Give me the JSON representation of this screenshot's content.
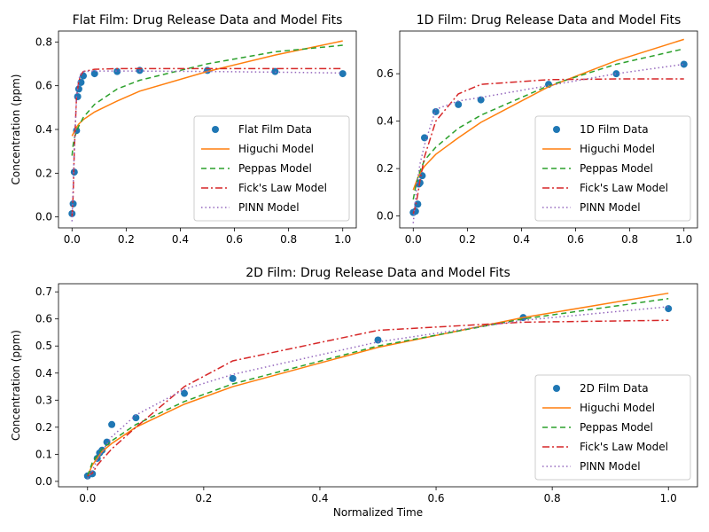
{
  "colors": {
    "data": "#1f77b4",
    "higuchi": "#ff7f0e",
    "peppas": "#2ca02c",
    "fick": "#d62728",
    "pinn": "#9467bd"
  },
  "chart_data": [
    {
      "type": "line",
      "title": "Flat Film: Drug Release Data and Model Fits",
      "xlabel": "",
      "ylabel": "Concentration (ppm)",
      "xlim": [
        -0.05,
        1.05
      ],
      "ylim": [
        -0.05,
        0.85
      ],
      "xticks": [
        0.0,
        0.2,
        0.4,
        0.6,
        0.8,
        1.0
      ],
      "xtick_labels": [
        "0.0",
        "0.2",
        "0.4",
        "0.6",
        "0.8",
        "1.0"
      ],
      "yticks": [
        0.0,
        0.2,
        0.4,
        0.6,
        0.8
      ],
      "ytick_labels": [
        "0.0",
        "0.2",
        "0.4",
        "0.6",
        "0.8"
      ],
      "legend_position": "bottom-right",
      "series": [
        {
          "name": "Flat Film Data",
          "kind": "scatter",
          "color_key": "data",
          "x": [
            0.0,
            0.0042,
            0.0083,
            0.0167,
            0.0208,
            0.025,
            0.0333,
            0.0417,
            0.0833,
            0.1667,
            0.25,
            0.5,
            0.75,
            1.0
          ],
          "y": [
            0.015,
            0.06,
            0.205,
            0.395,
            0.55,
            0.585,
            0.615,
            0.645,
            0.655,
            0.665,
            0.67,
            0.67,
            0.665,
            0.655
          ]
        },
        {
          "name": "Higuchi Model",
          "kind": "line",
          "color_key": "higuchi",
          "dash": "",
          "x": [
            0.0,
            0.0083,
            0.0167,
            0.025,
            0.0417,
            0.0833,
            0.1667,
            0.25,
            0.5,
            0.75,
            1.0
          ],
          "y": [
            0.37,
            0.39,
            0.41,
            0.425,
            0.445,
            0.48,
            0.53,
            0.575,
            0.665,
            0.74,
            0.805
          ]
        },
        {
          "name": "Peppas Model",
          "kind": "line",
          "color_key": "peppas",
          "dash": "6,4",
          "x": [
            0.0,
            0.0042,
            0.0083,
            0.0167,
            0.025,
            0.0417,
            0.0833,
            0.1667,
            0.25,
            0.5,
            0.75,
            1.0
          ],
          "y": [
            0.28,
            0.33,
            0.36,
            0.39,
            0.415,
            0.455,
            0.515,
            0.585,
            0.625,
            0.7,
            0.755,
            0.785
          ]
        },
        {
          "name": "Fick's Law Model",
          "kind": "line",
          "color_key": "fick",
          "dash": "8,3,2,3",
          "x": [
            0.0,
            0.0042,
            0.0083,
            0.0167,
            0.025,
            0.0333,
            0.0417,
            0.0833,
            0.1667,
            0.25,
            0.5,
            0.75,
            1.0
          ],
          "y": [
            0.0,
            0.1,
            0.3,
            0.55,
            0.62,
            0.65,
            0.665,
            0.675,
            0.678,
            0.678,
            0.678,
            0.678,
            0.678
          ]
        },
        {
          "name": "PINN Model",
          "kind": "line",
          "color_key": "pinn",
          "dash": "1.5,3",
          "x": [
            0.0,
            0.0083,
            0.0167,
            0.025,
            0.0333,
            0.0417,
            0.0833,
            0.1667,
            0.25,
            0.5,
            0.75,
            1.0
          ],
          "y": [
            -0.02,
            0.3,
            0.55,
            0.63,
            0.655,
            0.665,
            0.667,
            0.667,
            0.667,
            0.665,
            0.662,
            0.658
          ]
        }
      ]
    },
    {
      "type": "line",
      "title": "1D Film: Drug Release Data and Model Fits",
      "xlabel": "",
      "ylabel": "",
      "xlim": [
        -0.05,
        1.05
      ],
      "ylim": [
        -0.05,
        0.78
      ],
      "xticks": [
        0.0,
        0.2,
        0.4,
        0.6,
        0.8,
        1.0
      ],
      "xtick_labels": [
        "0.0",
        "0.2",
        "0.4",
        "0.6",
        "0.8",
        "1.0"
      ],
      "yticks": [
        0.0,
        0.2,
        0.4,
        0.6
      ],
      "ytick_labels": [
        "0.0",
        "0.2",
        "0.4",
        "0.6"
      ],
      "legend_position": "bottom-right",
      "series": [
        {
          "name": "1D Film Data",
          "kind": "scatter",
          "color_key": "data",
          "x": [
            0.0,
            0.0083,
            0.0167,
            0.0208,
            0.025,
            0.0333,
            0.0417,
            0.0833,
            0.1667,
            0.25,
            0.5,
            0.75,
            1.0
          ],
          "y": [
            0.015,
            0.02,
            0.05,
            0.135,
            0.14,
            0.17,
            0.33,
            0.44,
            0.47,
            0.49,
            0.555,
            0.6,
            0.64
          ]
        },
        {
          "name": "Higuchi Model",
          "kind": "line",
          "color_key": "higuchi",
          "dash": "",
          "x": [
            0.0,
            0.0083,
            0.0167,
            0.025,
            0.0417,
            0.0833,
            0.1667,
            0.25,
            0.5,
            0.75,
            1.0
          ],
          "y": [
            0.11,
            0.135,
            0.16,
            0.18,
            0.21,
            0.26,
            0.33,
            0.395,
            0.545,
            0.655,
            0.745
          ]
        },
        {
          "name": "Peppas Model",
          "kind": "line",
          "color_key": "peppas",
          "dash": "6,4",
          "x": [
            0.0,
            0.0083,
            0.0167,
            0.025,
            0.0417,
            0.0833,
            0.1667,
            0.25,
            0.5,
            0.75,
            1.0
          ],
          "y": [
            0.07,
            0.12,
            0.16,
            0.19,
            0.235,
            0.29,
            0.37,
            0.425,
            0.55,
            0.64,
            0.705
          ]
        },
        {
          "name": "Fick's Law Model",
          "kind": "line",
          "color_key": "fick",
          "dash": "8,3,2,3",
          "x": [
            0.0,
            0.0083,
            0.0167,
            0.025,
            0.0417,
            0.0833,
            0.1667,
            0.25,
            0.5,
            0.75,
            1.0
          ],
          "y": [
            0.01,
            0.04,
            0.09,
            0.15,
            0.25,
            0.4,
            0.515,
            0.555,
            0.575,
            0.578,
            0.578
          ]
        },
        {
          "name": "PINN Model",
          "kind": "line",
          "color_key": "pinn",
          "dash": "1.5,3",
          "x": [
            0.0,
            0.0083,
            0.0167,
            0.025,
            0.0417,
            0.0833,
            0.1667,
            0.25,
            0.5,
            0.75,
            1.0
          ],
          "y": [
            -0.03,
            0.07,
            0.16,
            0.22,
            0.3,
            0.45,
            0.485,
            0.5,
            0.55,
            0.6,
            0.64
          ]
        }
      ]
    },
    {
      "type": "line",
      "title": "2D Film: Drug Release Data and Model Fits",
      "xlabel": "Normalized Time",
      "ylabel": "Concentration (ppm)",
      "xlim": [
        -0.05,
        1.05
      ],
      "ylim": [
        -0.02,
        0.73
      ],
      "xticks": [
        0.0,
        0.2,
        0.4,
        0.6,
        0.8,
        1.0
      ],
      "xtick_labels": [
        "0.0",
        "0.2",
        "0.4",
        "0.6",
        "0.8",
        "1.0"
      ],
      "yticks": [
        0.0,
        0.1,
        0.2,
        0.3,
        0.4,
        0.5,
        0.6,
        0.7
      ],
      "ytick_labels": [
        "0.0",
        "0.1",
        "0.2",
        "0.3",
        "0.4",
        "0.5",
        "0.6",
        "0.7"
      ],
      "legend_position": "bottom-right",
      "series": [
        {
          "name": "2D Film Data",
          "kind": "scatter",
          "color_key": "data",
          "x": [
            0.0,
            0.0083,
            0.0167,
            0.0208,
            0.025,
            0.0333,
            0.0417,
            0.0833,
            0.1667,
            0.25,
            0.5,
            0.75,
            1.0
          ],
          "y": [
            0.02,
            0.028,
            0.085,
            0.105,
            0.115,
            0.145,
            0.21,
            0.235,
            0.325,
            0.38,
            0.522,
            0.605,
            0.638
          ]
        },
        {
          "name": "Higuchi Model",
          "kind": "line",
          "color_key": "higuchi",
          "dash": "",
          "x": [
            0.0,
            0.0083,
            0.0167,
            0.025,
            0.0417,
            0.0833,
            0.1667,
            0.25,
            0.5,
            0.75,
            1.0
          ],
          "y": [
            0.02,
            0.06,
            0.085,
            0.11,
            0.14,
            0.2,
            0.285,
            0.35,
            0.495,
            0.605,
            0.695
          ]
        },
        {
          "name": "Peppas Model",
          "kind": "line",
          "color_key": "peppas",
          "dash": "6,4",
          "x": [
            0.0,
            0.0083,
            0.0167,
            0.025,
            0.0417,
            0.0833,
            0.1667,
            0.25,
            0.5,
            0.75,
            1.0
          ],
          "y": [
            0.02,
            0.07,
            0.095,
            0.12,
            0.15,
            0.21,
            0.295,
            0.36,
            0.5,
            0.6,
            0.675
          ]
        },
        {
          "name": "Fick's Law Model",
          "kind": "line",
          "color_key": "fick",
          "dash": "8,3,2,3",
          "x": [
            0.0,
            0.0083,
            0.0167,
            0.025,
            0.0417,
            0.0833,
            0.1667,
            0.25,
            0.5,
            0.75,
            1.0
          ],
          "y": [
            0.02,
            0.03,
            0.06,
            0.08,
            0.12,
            0.2,
            0.35,
            0.445,
            0.558,
            0.588,
            0.595
          ]
        },
        {
          "name": "PINN Model",
          "kind": "line",
          "color_key": "pinn",
          "dash": "1.5,3",
          "x": [
            0.0,
            0.0083,
            0.0167,
            0.025,
            0.0417,
            0.0833,
            0.1667,
            0.25,
            0.5,
            0.75,
            1.0
          ],
          "y": [
            0.01,
            0.04,
            0.08,
            0.11,
            0.165,
            0.245,
            0.34,
            0.395,
            0.515,
            0.595,
            0.645
          ]
        }
      ]
    }
  ]
}
